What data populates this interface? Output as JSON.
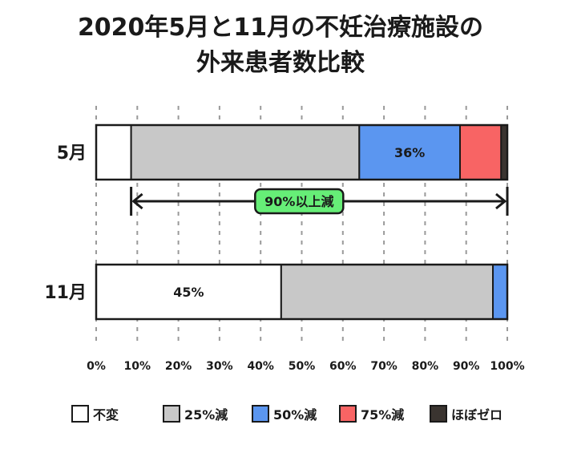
{
  "chart_data": {
    "type": "bar",
    "orientation": "horizontal",
    "stacked": true,
    "title": "2020年5月と11月の不妊治療施設の外来患者数比較",
    "title_lines": [
      "2020年5月と11月の不妊治療施設の",
      "外来患者数比較"
    ],
    "categories": [
      "5月",
      "11月"
    ],
    "series": [
      {
        "name": "不変",
        "color": "#ffffff",
        "values": [
          8.5,
          45
        ]
      },
      {
        "name": "25%減",
        "color": "#c8c8c8",
        "values": [
          55.5,
          51.5
        ]
      },
      {
        "name": "50%減",
        "color": "#5b96f0",
        "values": [
          24.5,
          3.5
        ]
      },
      {
        "name": "75%減",
        "color": "#f86464",
        "values": [
          10,
          0
        ]
      },
      {
        "name": "ほぼゼロ",
        "color": "#3a3430",
        "values": [
          1.5,
          0
        ]
      }
    ],
    "data_labels": [
      {
        "category": "5月",
        "series": "50%減",
        "text": "36%"
      },
      {
        "category": "11月",
        "series": "不変",
        "text": "45%"
      }
    ],
    "annotation": {
      "text": "90%以上減",
      "category": "5月",
      "from": 8.5,
      "to": 100,
      "color": "#66ee77"
    },
    "xlim": [
      0,
      100
    ],
    "xticks": [
      "0%",
      "10%",
      "20%",
      "30%",
      "40%",
      "50%",
      "60%",
      "70%",
      "80%",
      "90%",
      "100%"
    ],
    "grid": true,
    "legend_position": "bottom"
  }
}
